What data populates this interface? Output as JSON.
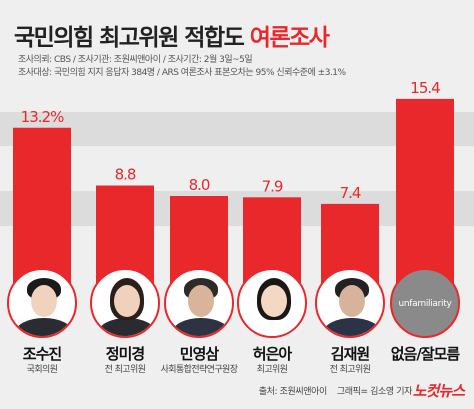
{
  "header": {
    "title_main": "국민의힘 최고위원 적합도",
    "title_accent": "여론조사",
    "meta_line1": "조사의뢰: CBS / 조사기관: 조원씨앤아이 / 조사기간: 2월 3일~5일",
    "meta_line2": "조사대상: 국민의힘 지지 응답자 384명 / ARS 여론조사 표본오차는 95% 신뢰수준에 ±3.1%"
  },
  "chart_data": {
    "type": "bar",
    "categories": [
      "조수진",
      "정미경",
      "민영삼",
      "허은아",
      "김재원",
      "없음/잘모름"
    ],
    "roles": [
      "국회의원",
      "전 최고위원",
      "사회통합전략연구원장",
      "최고위원",
      "전 최고위원",
      ""
    ],
    "values": [
      13.2,
      8.8,
      8.0,
      7.9,
      7.4,
      15.4
    ],
    "value_labels": [
      "13.2%",
      "8.8",
      "8.0",
      "7.9",
      "7.4",
      "15.4"
    ],
    "bar_color": "#e8282b",
    "ylim": [
      0,
      16
    ],
    "grid": true
  },
  "unfamiliarity_label": "unfamiliarity",
  "footer": {
    "source": "출처: 조원씨앤아이",
    "graphic": "그래픽= 김소영 기자",
    "logo": "노컷뉴스"
  }
}
